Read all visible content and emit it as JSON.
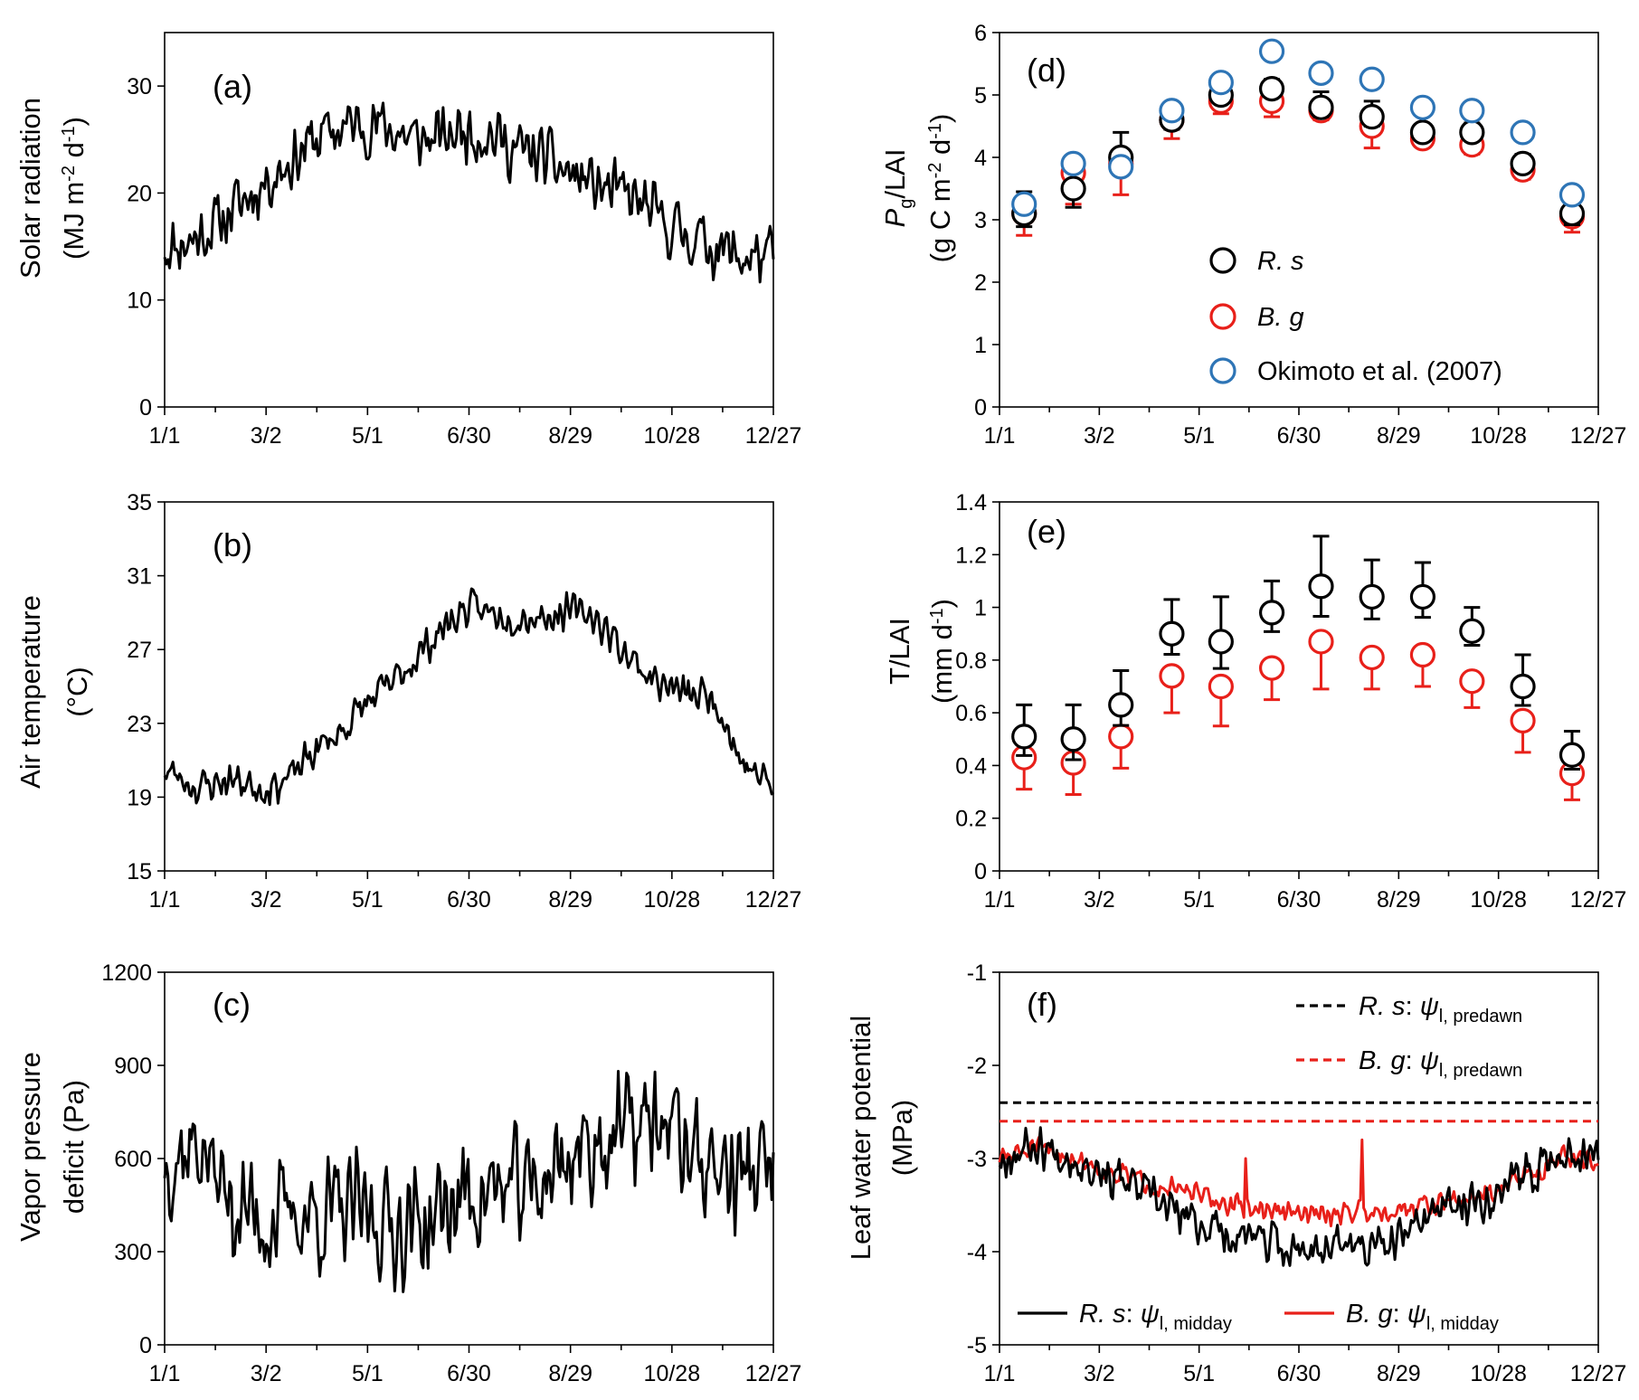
{
  "figure": {
    "x_ticks": [
      "1/1",
      "3/2",
      "5/1",
      "6/30",
      "8/29",
      "10/28",
      "12/27"
    ]
  },
  "chart_data": [
    {
      "id": "a",
      "type": "line",
      "panel_label": "(a)",
      "ylabel_line1": "Solar radiation",
      "ylabel_line2": "(MJ m-2 d-1)",
      "ylabel_parts": {
        "l1": "Solar radiation",
        "l2a": "(MJ m",
        "l2sup1": "-2",
        "l2b": " d",
        "l2sup2": "-1",
        "l2c": ")"
      },
      "xlabel": "",
      "xlim": [
        0,
        365
      ],
      "ylim": [
        0,
        35
      ],
      "y_ticks": [
        "0",
        "10",
        "20",
        "30"
      ],
      "x_ticks": [
        "1/1",
        "3/2",
        "5/1",
        "6/30",
        "8/29",
        "10/28",
        "12/27"
      ],
      "series": [
        {
          "name": "Solar radiation",
          "color": "#000000",
          "knots": [
            [
              0,
              15
            ],
            [
              15,
              15.5
            ],
            [
              30,
              17
            ],
            [
              45,
              19
            ],
            [
              60,
              21
            ],
            [
              75,
              23
            ],
            [
              90,
              25
            ],
            [
              105,
              26
            ],
            [
              120,
              26.5
            ],
            [
              135,
              26
            ],
            [
              150,
              25
            ],
            [
              165,
              25
            ],
            [
              180,
              26
            ],
            [
              195,
              25.5
            ],
            [
              210,
              24
            ],
            [
              225,
              23.5
            ],
            [
              240,
              22
            ],
            [
              255,
              21
            ],
            [
              270,
              20
            ],
            [
              285,
              19
            ],
            [
              300,
              17
            ],
            [
              315,
              16
            ],
            [
              330,
              15
            ],
            [
              345,
              14
            ],
            [
              365,
              14
            ]
          ],
          "noise_amp": 3.5,
          "seed": 11
        }
      ]
    },
    {
      "id": "b",
      "type": "line",
      "panel_label": "(b)",
      "ylabel_line1": "Air temperature",
      "ylabel_line2": "(°C)",
      "xlabel": "",
      "xlim": [
        0,
        365
      ],
      "ylim": [
        15,
        35
      ],
      "y_ticks": [
        "15",
        "19",
        "23",
        "27",
        "31",
        "35"
      ],
      "x_ticks": [
        "1/1",
        "3/2",
        "5/1",
        "6/30",
        "8/29",
        "10/28",
        "12/27"
      ],
      "series": [
        {
          "name": "Air temperature",
          "color": "#000000",
          "knots": [
            [
              0,
              20.5
            ],
            [
              20,
              19.5
            ],
            [
              40,
              20
            ],
            [
              60,
              19.5
            ],
            [
              75,
              20
            ],
            [
              90,
              21.5
            ],
            [
              105,
              22.5
            ],
            [
              120,
              24
            ],
            [
              135,
              25
            ],
            [
              150,
              26.5
            ],
            [
              165,
              28
            ],
            [
              180,
              29.2
            ],
            [
              195,
              29
            ],
            [
              210,
              28.8
            ],
            [
              225,
              28.8
            ],
            [
              240,
              29
            ],
            [
              255,
              29
            ],
            [
              265,
              28
            ],
            [
              275,
              27
            ],
            [
              285,
              26
            ],
            [
              300,
              25
            ],
            [
              315,
              24.5
            ],
            [
              330,
              24.5
            ],
            [
              345,
              21
            ],
            [
              365,
              19.5
            ]
          ],
          "noise_amp": 1.2,
          "seed": 23
        }
      ]
    },
    {
      "id": "c",
      "type": "line",
      "panel_label": "(c)",
      "ylabel_line1": "Vapor pressure",
      "ylabel_line2": "deficit (Pa)",
      "xlabel": "",
      "xlim": [
        0,
        365
      ],
      "ylim": [
        0,
        1200
      ],
      "y_ticks": [
        "0",
        "300",
        "600",
        "900",
        "1200"
      ],
      "x_ticks": [
        "1/1",
        "3/2",
        "5/1",
        "6/30",
        "8/29",
        "10/28",
        "12/27"
      ],
      "series": [
        {
          "name": "Vapor pressure deficit",
          "color": "#000000",
          "knots": [
            [
              0,
              600
            ],
            [
              20,
              650
            ],
            [
              40,
              450
            ],
            [
              60,
              400
            ],
            [
              80,
              420
            ],
            [
              100,
              420
            ],
            [
              120,
              420
            ],
            [
              140,
              380
            ],
            [
              160,
              400
            ],
            [
              180,
              480
            ],
            [
              200,
              500
            ],
            [
              220,
              500
            ],
            [
              240,
              600
            ],
            [
              260,
              650
            ],
            [
              280,
              700
            ],
            [
              300,
              720
            ],
            [
              320,
              600
            ],
            [
              340,
              550
            ],
            [
              365,
              560
            ]
          ],
          "noise_amp": 230,
          "seed": 37
        }
      ]
    },
    {
      "id": "d",
      "type": "scatter",
      "panel_label": "(d)",
      "ylabel_parts": {
        "P": "P",
        "sub": "g",
        "l1b": "/LAI",
        "l2a": "(g C m",
        "l2sup1": "-2",
        "l2b": " d",
        "l2sup2": "-1",
        "l2c": ")"
      },
      "xlabel": "",
      "xlim": [
        0,
        365
      ],
      "ylim": [
        0,
        6
      ],
      "y_ticks": [
        "0",
        "1",
        "2",
        "3",
        "4",
        "5",
        "6"
      ],
      "x_ticks": [
        "1/1",
        "3/2",
        "5/1",
        "6/30",
        "8/29",
        "10/28",
        "12/27"
      ],
      "x": [
        15,
        45,
        74,
        105,
        135,
        166,
        196,
        227,
        258,
        288,
        319,
        349
      ],
      "series": [
        {
          "name": "R. s",
          "color": "#000000",
          "values": [
            3.1,
            3.5,
            4.0,
            4.6,
            5.0,
            5.1,
            4.8,
            4.65,
            4.4,
            4.4,
            3.9,
            3.1
          ],
          "err": [
            0.35,
            0.5,
            0.4,
            0.25,
            0.2,
            0.15,
            0.25,
            0.25,
            0.1,
            0.15,
            0.15,
            0.3
          ]
        },
        {
          "name": "B. g",
          "color": "#e8201a",
          "values": [
            3.1,
            3.75,
            3.9,
            4.6,
            4.9,
            4.9,
            4.75,
            4.5,
            4.3,
            4.2,
            3.8,
            3.05
          ],
          "err": [
            0.35,
            0.5,
            0.5,
            0.3,
            0.2,
            0.25,
            0.15,
            0.35,
            0.1,
            0.15,
            0.15,
            0.25
          ]
        },
        {
          "name": "Okimoto et al. (2007)",
          "color": "#2e75b6",
          "values": [
            3.25,
            3.9,
            3.85,
            4.75,
            5.2,
            5.7,
            5.35,
            5.25,
            4.8,
            4.75,
            4.4,
            3.4
          ]
        }
      ],
      "legend": [
        "R. s",
        "B. g",
        "Okimoto et al. (2007)"
      ],
      "legend_position": "center-right"
    },
    {
      "id": "e",
      "type": "scatter",
      "panel_label": "(e)",
      "ylabel_line1": "T/LAI",
      "ylabel_line2": "(mm d-1)",
      "ylabel_parts": {
        "l1": "T/LAI",
        "l2a": "(mm d",
        "l2sup": "-1",
        "l2b": ")"
      },
      "xlabel": "",
      "xlim": [
        0,
        365
      ],
      "ylim": [
        0,
        1.4
      ],
      "y_ticks": [
        "0",
        "0.2",
        "0.4",
        "0.6",
        "0.8",
        "1",
        "1.2",
        "1.4"
      ],
      "x_ticks": [
        "1/1",
        "3/2",
        "5/1",
        "6/30",
        "8/29",
        "10/28",
        "12/27"
      ],
      "x": [
        15,
        45,
        74,
        105,
        135,
        166,
        196,
        227,
        258,
        288,
        319,
        349
      ],
      "series": [
        {
          "name": "R. s",
          "color": "#000000",
          "values": [
            0.51,
            0.5,
            0.63,
            0.9,
            0.87,
            0.98,
            1.08,
            1.04,
            1.04,
            0.91,
            0.7,
            0.44
          ],
          "err": [
            0.12,
            0.13,
            0.13,
            0.13,
            0.17,
            0.12,
            0.19,
            0.14,
            0.13,
            0.09,
            0.12,
            0.09
          ]
        },
        {
          "name": "B. g",
          "color": "#e8201a",
          "values": [
            0.43,
            0.41,
            0.51,
            0.74,
            0.7,
            0.77,
            0.87,
            0.81,
            0.82,
            0.72,
            0.57,
            0.37
          ],
          "err": [
            0.12,
            0.12,
            0.12,
            0.14,
            0.15,
            0.12,
            0.18,
            0.12,
            0.12,
            0.1,
            0.12,
            0.1
          ]
        }
      ]
    },
    {
      "id": "f",
      "type": "line",
      "panel_label": "(f)",
      "ylabel_line1": "Leaf water potential",
      "ylabel_line2": "(MPa)",
      "xlabel": "",
      "xlim": [
        0,
        365
      ],
      "ylim": [
        -5,
        -1
      ],
      "y_ticks": [
        "-5",
        "-4",
        "-3",
        "-2",
        "-1"
      ],
      "x_ticks": [
        "1/1",
        "3/2",
        "5/1",
        "6/30",
        "8/29",
        "10/28",
        "12/27"
      ],
      "series": [
        {
          "name": "R. s: ψl,predawn",
          "species": "R. s",
          "psi_sub": "l, predawn",
          "color": "#000000",
          "dash": true,
          "constant": -2.4
        },
        {
          "name": "B. g: ψl,predawn",
          "species": "B. g",
          "psi_sub": "l, predawn",
          "color": "#e8201a",
          "dash": true,
          "constant": -2.6
        },
        {
          "name": "B. g: ψl,midday",
          "species": "B. g",
          "psi_sub": "l, midday",
          "color": "#e8201a",
          "knots": [
            [
              0,
              -3.0
            ],
            [
              20,
              -2.9
            ],
            [
              40,
              -2.95
            ],
            [
              60,
              -3.1
            ],
            [
              80,
              -3.2
            ],
            [
              100,
              -3.3
            ],
            [
              120,
              -3.4
            ],
            [
              140,
              -3.5
            ],
            [
              160,
              -3.55
            ],
            [
              180,
              -3.6
            ],
            [
              200,
              -3.6
            ],
            [
              220,
              -3.55
            ],
            [
              240,
              -3.55
            ],
            [
              260,
              -3.5
            ],
            [
              280,
              -3.45
            ],
            [
              300,
              -3.35
            ],
            [
              320,
              -3.2
            ],
            [
              340,
              -3.0
            ],
            [
              365,
              -3.0
            ]
          ],
          "noise_amp": 0.15,
          "seed": 51,
          "spikes": [
            [
              150,
              -3.0
            ],
            [
              221,
              -2.8
            ]
          ]
        },
        {
          "name": "R. s: ψl,midday",
          "species": "R. s",
          "psi_sub": "l, midday",
          "color": "#000000",
          "knots": [
            [
              0,
              -3.0
            ],
            [
              20,
              -2.85
            ],
            [
              40,
              -2.95
            ],
            [
              60,
              -3.1
            ],
            [
              80,
              -3.3
            ],
            [
              100,
              -3.5
            ],
            [
              120,
              -3.7
            ],
            [
              140,
              -3.8
            ],
            [
              160,
              -3.9
            ],
            [
              180,
              -4.0
            ],
            [
              200,
              -3.9
            ],
            [
              220,
              -3.95
            ],
            [
              240,
              -3.95
            ],
            [
              260,
              -3.6
            ],
            [
              280,
              -3.5
            ],
            [
              300,
              -3.4
            ],
            [
              320,
              -3.2
            ],
            [
              340,
              -2.95
            ],
            [
              365,
              -2.9
            ]
          ],
          "noise_amp": 0.28,
          "seed": 67
        }
      ]
    }
  ]
}
